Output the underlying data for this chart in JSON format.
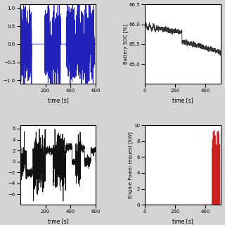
{
  "fig_width": 3.2,
  "fig_height": 3.2,
  "dpi": 100,
  "bg_color": "#d4d4d4",
  "plot_bg": "#ffffff",
  "top_left": {
    "xlabel": "time [s]",
    "xlim": [
      0,
      600
    ],
    "ylim": [
      -1.1,
      1.1
    ],
    "xticks": [
      200,
      400,
      600
    ],
    "line_color": "#2222bb",
    "linewidth": 0.6
  },
  "top_right": {
    "ylabel": "Battery SOC [%]",
    "xlabel": "time [s]",
    "xlim": [
      0,
      500
    ],
    "ylim": [
      64.5,
      66.5
    ],
    "yticks": [
      65.0,
      65.5,
      66.0,
      66.5
    ],
    "xticks": [
      0,
      200,
      400
    ],
    "line_color": "#333333",
    "linewidth": 0.6
  },
  "bottom_left": {
    "xlabel": "time [s]",
    "xlim": [
      0,
      600
    ],
    "xticks": [
      200,
      400,
      600
    ],
    "line_color": "#111111",
    "linewidth": 0.6
  },
  "bottom_right": {
    "ylabel": "Engine Power request [kW]",
    "xlabel": "time [s]",
    "xlim": [
      0,
      500
    ],
    "ylim": [
      0,
      10
    ],
    "yticks": [
      0,
      2,
      4,
      6,
      8,
      10
    ],
    "xticks": [
      0,
      200,
      400
    ],
    "line_color": "#cc2222",
    "linewidth": 0.6
  },
  "tick_fontsize": 5.0,
  "label_fontsize": 5.5,
  "ylabel_fontsize": 5.0
}
